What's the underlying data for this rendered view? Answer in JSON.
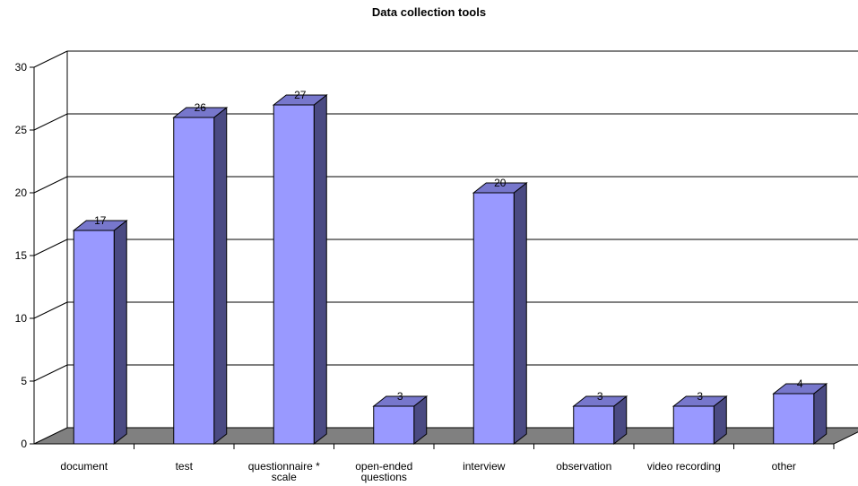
{
  "chart_data": {
    "type": "bar",
    "title": "Data collection tools",
    "categories": [
      "document",
      "test",
      "questionnaire * scale",
      "open-ended questions",
      "interview",
      "observation",
      "video recording",
      "other"
    ],
    "category_lines": [
      [
        "document"
      ],
      [
        "test"
      ],
      [
        "questionnaire *",
        "scale"
      ],
      [
        "open-ended",
        "questions"
      ],
      [
        "interview"
      ],
      [
        "observation"
      ],
      [
        "video recording"
      ],
      [
        "other"
      ]
    ],
    "values": [
      17,
      26,
      27,
      3,
      20,
      3,
      3,
      4
    ],
    "data_labels": [
      "17",
      "26",
      "27",
      "3",
      "20",
      "3",
      "3",
      "4"
    ],
    "ylim": [
      0,
      30
    ],
    "yticks": [
      "0",
      "5",
      "10",
      "15",
      "20",
      "25",
      "30"
    ],
    "xlabel": "",
    "ylabel": "",
    "grid": true,
    "style": "3d-column",
    "colors": {
      "bar_front": "#9999ff",
      "bar_side": "#4a4a82",
      "bar_top": "#7777cc",
      "floor": "#808080",
      "grid": "#000000"
    }
  }
}
